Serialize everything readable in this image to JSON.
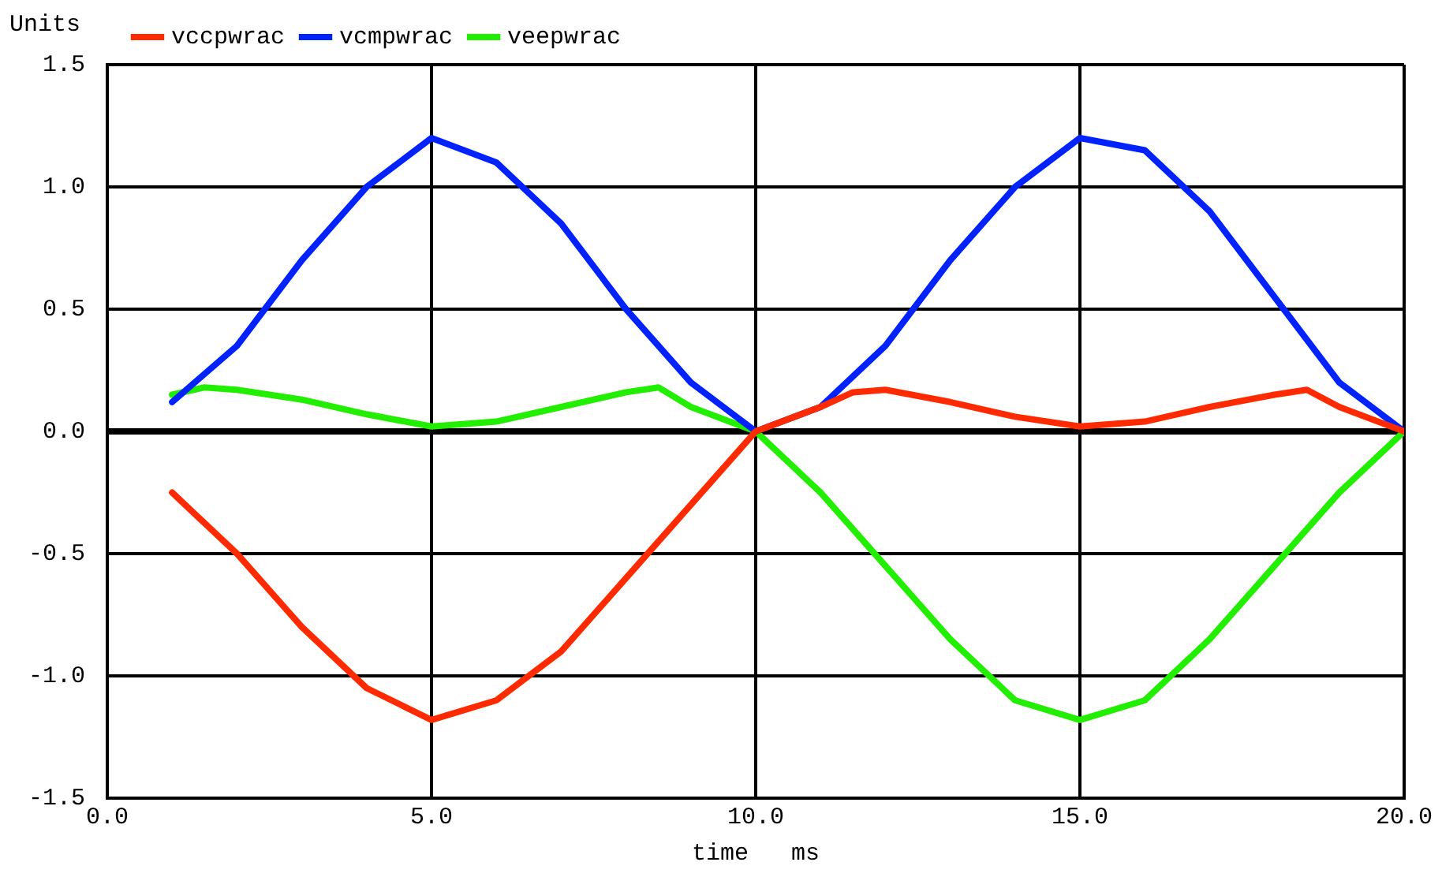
{
  "chart_data": {
    "type": "line",
    "ylabel": "Units",
    "xlabel": "time   ms",
    "xlim": [
      0,
      20
    ],
    "xticks": [
      {
        "value": 0,
        "label": "0.0"
      },
      {
        "value": 5,
        "label": "5.0"
      },
      {
        "value": 10,
        "label": "10.0"
      },
      {
        "value": 15,
        "label": "15.0"
      },
      {
        "value": 20,
        "label": "20.0"
      }
    ],
    "ylim": [
      -1.5,
      1.5
    ],
    "yticks": [
      {
        "value": -1.5,
        "label": "-1.5"
      },
      {
        "value": -1,
        "label": "-1.0"
      },
      {
        "value": -0.5,
        "label": "-0.5"
      },
      {
        "value": 0,
        "label": "0.0"
      },
      {
        "value": 0.5,
        "label": "0.5"
      },
      {
        "value": 1,
        "label": "1.0"
      },
      {
        "value": 1.5,
        "label": "1.5"
      }
    ],
    "grid": true,
    "legend": "top",
    "marker": "none",
    "line_style": "solid",
    "series": [
      {
        "name": "vccpwrac",
        "color": "#ff2a00",
        "x": [
          1,
          2,
          3,
          4,
          5,
          6,
          7,
          8,
          9,
          10,
          11,
          11.5,
          12,
          13,
          14,
          15,
          16,
          17,
          18,
          18.5,
          19,
          20
        ],
        "values": [
          -0.25,
          -0.5,
          -0.8,
          -1.05,
          -1.18,
          -1.1,
          -0.9,
          -0.6,
          -0.3,
          0,
          0.1,
          0.16,
          0.17,
          0.12,
          0.06,
          0.02,
          0.04,
          0.1,
          0.15,
          0.17,
          0.1,
          0
        ]
      },
      {
        "name": "vcmpwrac",
        "color": "#0022ff",
        "x": [
          1,
          2,
          3,
          4,
          5,
          6,
          7,
          8,
          9,
          10,
          11,
          12,
          13,
          14,
          15,
          16,
          17,
          18,
          19,
          20
        ],
        "values": [
          0.12,
          0.35,
          0.7,
          1.0,
          1.2,
          1.1,
          0.85,
          0.5,
          0.2,
          0,
          0.1,
          0.35,
          0.7,
          1.0,
          1.2,
          1.15,
          0.9,
          0.55,
          0.2,
          0
        ]
      },
      {
        "name": "veepwrac",
        "color": "#22ee00",
        "x": [
          1,
          1.5,
          2,
          3,
          4,
          5,
          6,
          7,
          8,
          8.5,
          9,
          10,
          11,
          12,
          13,
          14,
          15,
          16,
          17,
          18,
          19,
          20
        ],
        "values": [
          0.15,
          0.18,
          0.17,
          0.13,
          0.07,
          0.02,
          0.04,
          0.1,
          0.16,
          0.18,
          0.1,
          0,
          -0.25,
          -0.55,
          -0.85,
          -1.1,
          -1.18,
          -1.1,
          -0.85,
          -0.55,
          -0.25,
          0
        ]
      }
    ]
  }
}
